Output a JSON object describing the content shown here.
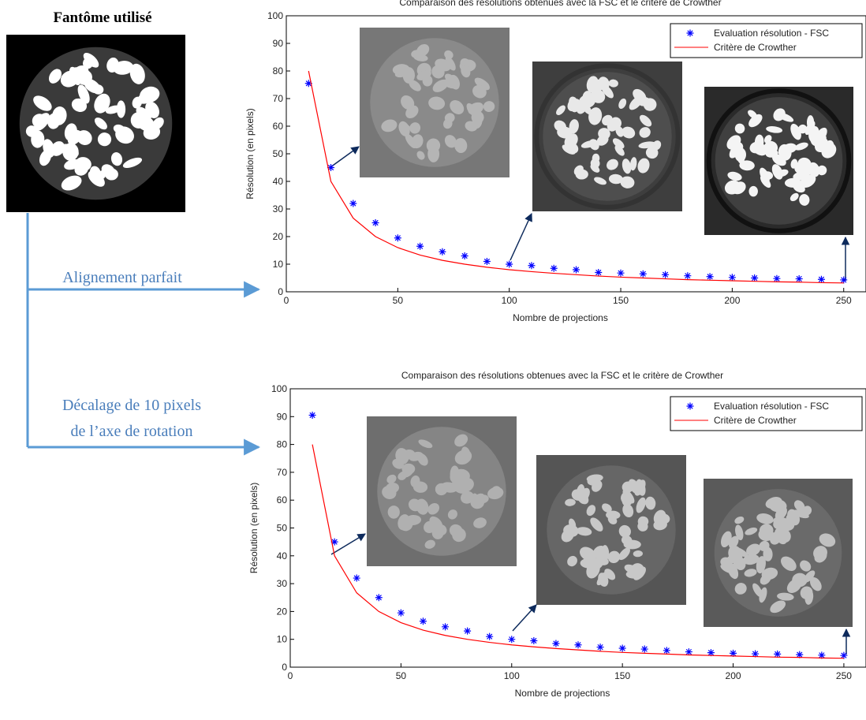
{
  "labels": {
    "phantom_title": "Fantôme utilisé",
    "aligned": "Alignement parfait",
    "shift_line1": "Décalage de 10 pixels",
    "shift_line2": "de l’axe de rotation"
  },
  "chart_data": [
    {
      "type": "line",
      "title": "Comparaison des résolutions obtenues avec la FSC et le critère de Crowther",
      "x_label": "Nombre de projections",
      "y_label": "Résolution (en pixels)",
      "x": [
        10,
        20,
        30,
        40,
        50,
        60,
        70,
        80,
        90,
        100,
        110,
        120,
        130,
        140,
        150,
        160,
        170,
        180,
        190,
        200,
        210,
        220,
        230,
        240,
        250
      ],
      "series": [
        {
          "name": "Evaluation résolution - FSC",
          "color": "#0000ff",
          "style": "markers",
          "values": [
            75.5,
            45,
            32,
            25,
            19.5,
            16.5,
            14.5,
            13,
            11,
            10,
            9.5,
            8.5,
            8,
            7,
            6.8,
            6.5,
            6.2,
            5.8,
            5.5,
            5.2,
            5,
            4.8,
            4.7,
            4.5,
            4.3
          ]
        },
        {
          "name": "Critère de Crowther",
          "color": "#ff0000",
          "style": "line",
          "values": [
            80,
            40,
            26.7,
            20,
            16,
            13.3,
            11.4,
            10,
            8.9,
            8,
            7.3,
            6.7,
            6.2,
            5.7,
            5.3,
            5,
            4.7,
            4.4,
            4.2,
            4,
            3.8,
            3.6,
            3.5,
            3.3,
            3.2
          ]
        }
      ],
      "xlim": [
        0,
        260
      ],
      "ylim": [
        0,
        100
      ],
      "xticks": [
        0,
        50,
        100,
        150,
        200,
        250
      ],
      "yticks": [
        0,
        10,
        20,
        30,
        40,
        50,
        60,
        70,
        80,
        90,
        100
      ],
      "legend": "upper right",
      "grid": false
    },
    {
      "type": "line",
      "title": "Comparaison des résolutions obtenues avec la FSC et le critère de Crowther",
      "x_label": "Nombre de projections",
      "y_label": "Résolution (en pixels)",
      "x": [
        10,
        20,
        30,
        40,
        50,
        60,
        70,
        80,
        90,
        100,
        110,
        120,
        130,
        140,
        150,
        160,
        170,
        180,
        190,
        200,
        210,
        220,
        230,
        240,
        250
      ],
      "series": [
        {
          "name": "Evaluation résolution - FSC",
          "color": "#0000ff",
          "style": "markers",
          "values": [
            90.5,
            45,
            32,
            25,
            19.5,
            16.5,
            14.5,
            13,
            11,
            10,
            9.5,
            8.5,
            8,
            7.2,
            6.8,
            6.5,
            6,
            5.5,
            5.2,
            5,
            4.8,
            4.7,
            4.5,
            4.3,
            4.2
          ]
        },
        {
          "name": "Critère de Crowther",
          "color": "#ff0000",
          "style": "line",
          "values": [
            80,
            40,
            26.7,
            20,
            16,
            13.3,
            11.4,
            10,
            8.9,
            8,
            7.3,
            6.7,
            6.2,
            5.7,
            5.3,
            5,
            4.7,
            4.4,
            4.2,
            4,
            3.8,
            3.6,
            3.5,
            3.3,
            3.2
          ]
        }
      ],
      "xlim": [
        0,
        260
      ],
      "ylim": [
        0,
        100
      ],
      "xticks": [
        0,
        50,
        100,
        150,
        200,
        250
      ],
      "yticks": [
        0,
        10,
        20,
        30,
        40,
        50,
        60,
        70,
        80,
        90,
        100
      ],
      "legend": "upper right",
      "grid": false
    }
  ]
}
